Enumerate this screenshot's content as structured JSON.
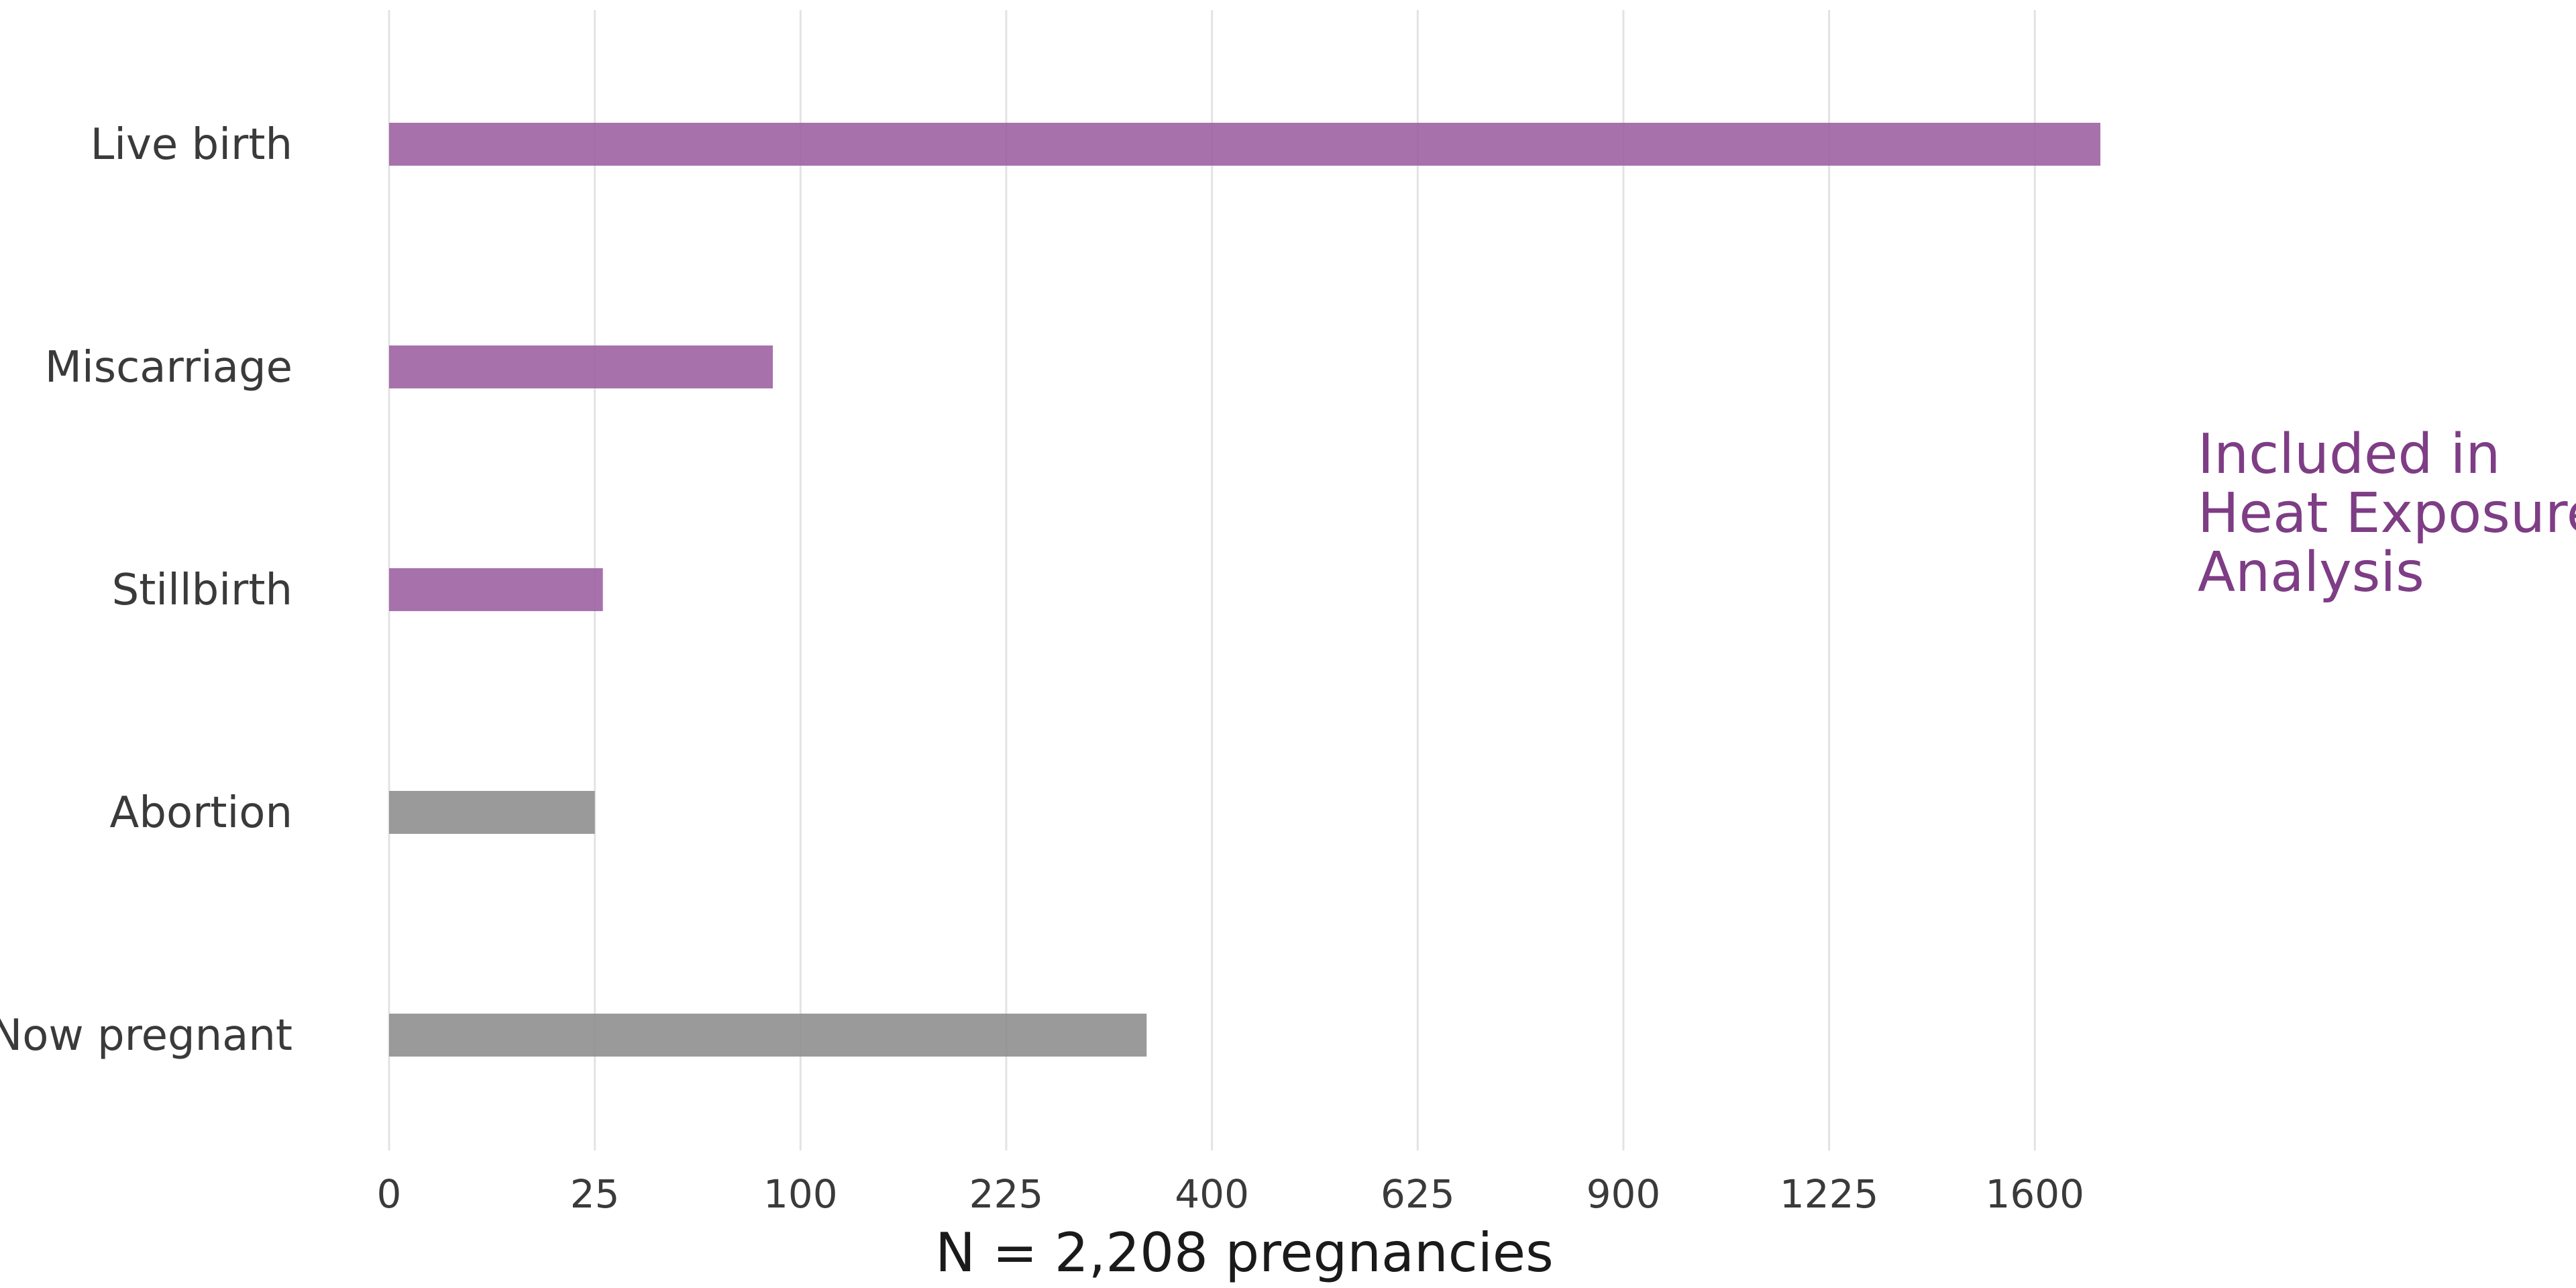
{
  "chart_data": {
    "type": "bar",
    "orientation": "horizontal",
    "x_scale": "sqrt",
    "grid": "vertical",
    "categories": [
      "Live birth",
      "Miscarriage",
      "Stillbirth",
      "Abortion",
      "Now pregnant"
    ],
    "values": [
      1730,
      87,
      27,
      25,
      339
    ],
    "included": [
      true,
      true,
      true,
      false,
      false
    ],
    "x_ticks": [
      0,
      25,
      100,
      225,
      400,
      625,
      900,
      1225,
      1600
    ],
    "xlim": [
      0,
      1730
    ],
    "xlabel": "N = 2,208 pregnancies",
    "ylabel": "",
    "title": "",
    "annotation_lines": [
      "Included in",
      "Heat Exposure",
      "Analysis"
    ],
    "colors": {
      "included": "#9b5f9f",
      "excluded": "#8c8c8c",
      "annotation": "#7e3d85",
      "grid": "#e3e3e3"
    }
  }
}
